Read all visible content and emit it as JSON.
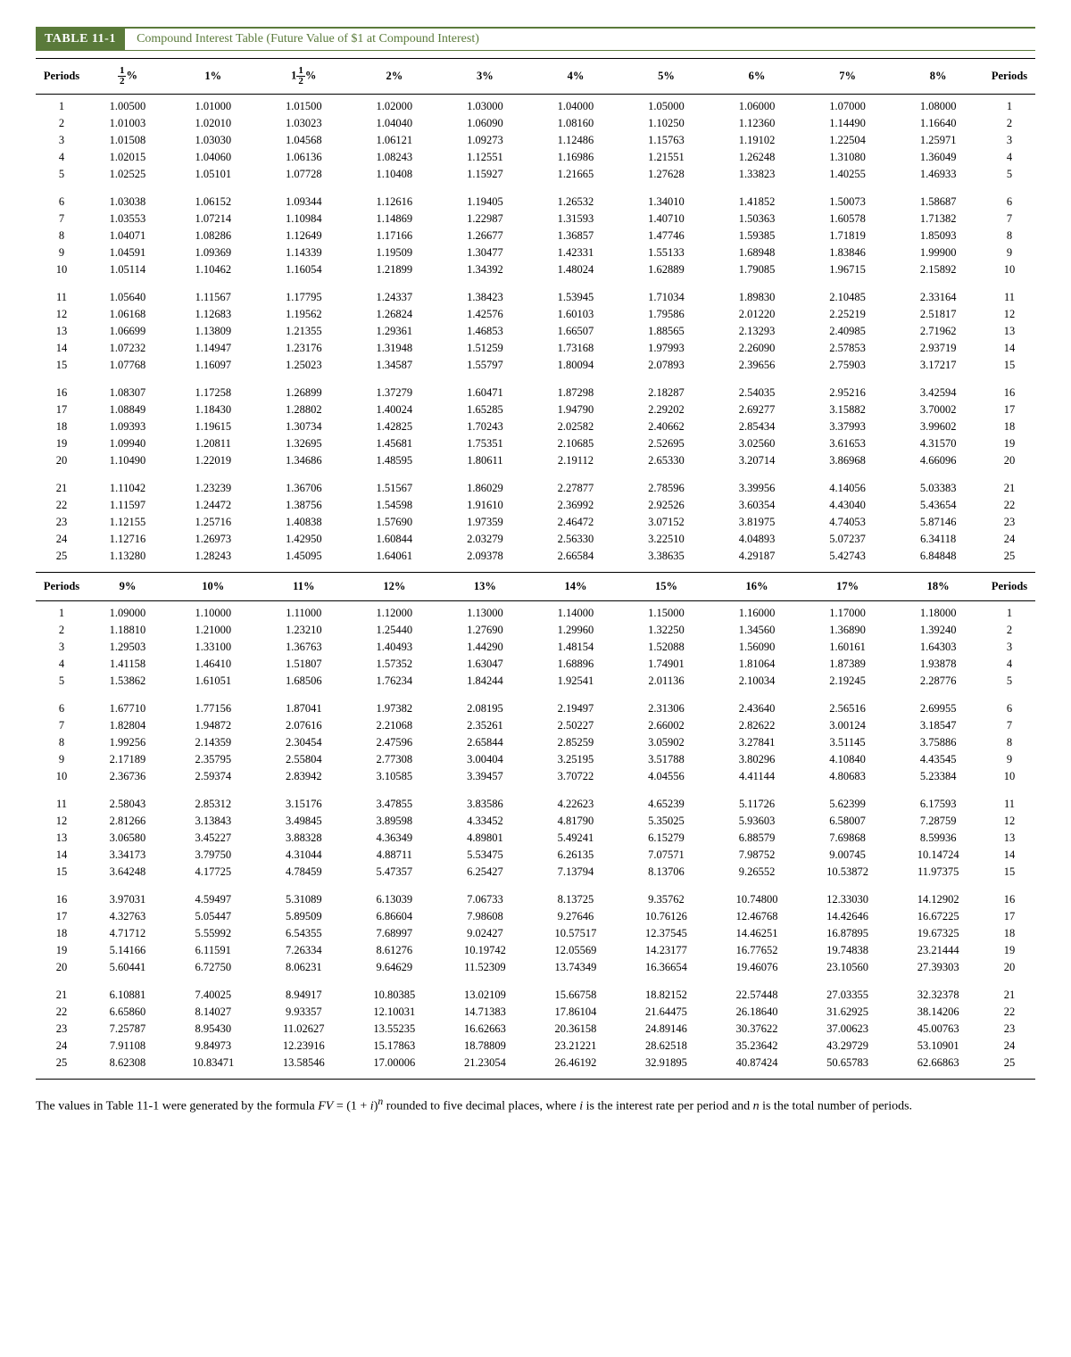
{
  "title_label": "TABLE 11-1",
  "title_text": "Compound Interest Table (Future Value of $1 at Compound Interest)",
  "footnote": "The values in Table 11-1 were generated by the formula FV = (1 + i)ⁿ rounded to five decimal places, where i is the interest rate per period and n is the total number of periods.",
  "periods_header": "Periods",
  "sections": [
    {
      "headers": [
        "½%",
        "1%",
        "1½%",
        "2%",
        "3%",
        "4%",
        "5%",
        "6%",
        "7%",
        "8%"
      ],
      "blocks": [
        [
          [
            "1",
            "1.00500",
            "1.01000",
            "1.01500",
            "1.02000",
            "1.03000",
            "1.04000",
            "1.05000",
            "1.06000",
            "1.07000",
            "1.08000",
            "1"
          ],
          [
            "2",
            "1.01003",
            "1.02010",
            "1.03023",
            "1.04040",
            "1.06090",
            "1.08160",
            "1.10250",
            "1.12360",
            "1.14490",
            "1.16640",
            "2"
          ],
          [
            "3",
            "1.01508",
            "1.03030",
            "1.04568",
            "1.06121",
            "1.09273",
            "1.12486",
            "1.15763",
            "1.19102",
            "1.22504",
            "1.25971",
            "3"
          ],
          [
            "4",
            "1.02015",
            "1.04060",
            "1.06136",
            "1.08243",
            "1.12551",
            "1.16986",
            "1.21551",
            "1.26248",
            "1.31080",
            "1.36049",
            "4"
          ],
          [
            "5",
            "1.02525",
            "1.05101",
            "1.07728",
            "1.10408",
            "1.15927",
            "1.21665",
            "1.27628",
            "1.33823",
            "1.40255",
            "1.46933",
            "5"
          ]
        ],
        [
          [
            "6",
            "1.03038",
            "1.06152",
            "1.09344",
            "1.12616",
            "1.19405",
            "1.26532",
            "1.34010",
            "1.41852",
            "1.50073",
            "1.58687",
            "6"
          ],
          [
            "7",
            "1.03553",
            "1.07214",
            "1.10984",
            "1.14869",
            "1.22987",
            "1.31593",
            "1.40710",
            "1.50363",
            "1.60578",
            "1.71382",
            "7"
          ],
          [
            "8",
            "1.04071",
            "1.08286",
            "1.12649",
            "1.17166",
            "1.26677",
            "1.36857",
            "1.47746",
            "1.59385",
            "1.71819",
            "1.85093",
            "8"
          ],
          [
            "9",
            "1.04591",
            "1.09369",
            "1.14339",
            "1.19509",
            "1.30477",
            "1.42331",
            "1.55133",
            "1.68948",
            "1.83846",
            "1.99900",
            "9"
          ],
          [
            "10",
            "1.05114",
            "1.10462",
            "1.16054",
            "1.21899",
            "1.34392",
            "1.48024",
            "1.62889",
            "1.79085",
            "1.96715",
            "2.15892",
            "10"
          ]
        ],
        [
          [
            "11",
            "1.05640",
            "1.11567",
            "1.17795",
            "1.24337",
            "1.38423",
            "1.53945",
            "1.71034",
            "1.89830",
            "2.10485",
            "2.33164",
            "11"
          ],
          [
            "12",
            "1.06168",
            "1.12683",
            "1.19562",
            "1.26824",
            "1.42576",
            "1.60103",
            "1.79586",
            "2.01220",
            "2.25219",
            "2.51817",
            "12"
          ],
          [
            "13",
            "1.06699",
            "1.13809",
            "1.21355",
            "1.29361",
            "1.46853",
            "1.66507",
            "1.88565",
            "2.13293",
            "2.40985",
            "2.71962",
            "13"
          ],
          [
            "14",
            "1.07232",
            "1.14947",
            "1.23176",
            "1.31948",
            "1.51259",
            "1.73168",
            "1.97993",
            "2.26090",
            "2.57853",
            "2.93719",
            "14"
          ],
          [
            "15",
            "1.07768",
            "1.16097",
            "1.25023",
            "1.34587",
            "1.55797",
            "1.80094",
            "2.07893",
            "2.39656",
            "2.75903",
            "3.17217",
            "15"
          ]
        ],
        [
          [
            "16",
            "1.08307",
            "1.17258",
            "1.26899",
            "1.37279",
            "1.60471",
            "1.87298",
            "2.18287",
            "2.54035",
            "2.95216",
            "3.42594",
            "16"
          ],
          [
            "17",
            "1.08849",
            "1.18430",
            "1.28802",
            "1.40024",
            "1.65285",
            "1.94790",
            "2.29202",
            "2.69277",
            "3.15882",
            "3.70002",
            "17"
          ],
          [
            "18",
            "1.09393",
            "1.19615",
            "1.30734",
            "1.42825",
            "1.70243",
            "2.02582",
            "2.40662",
            "2.85434",
            "3.37993",
            "3.99602",
            "18"
          ],
          [
            "19",
            "1.09940",
            "1.20811",
            "1.32695",
            "1.45681",
            "1.75351",
            "2.10685",
            "2.52695",
            "3.02560",
            "3.61653",
            "4.31570",
            "19"
          ],
          [
            "20",
            "1.10490",
            "1.22019",
            "1.34686",
            "1.48595",
            "1.80611",
            "2.19112",
            "2.65330",
            "3.20714",
            "3.86968",
            "4.66096",
            "20"
          ]
        ],
        [
          [
            "21",
            "1.11042",
            "1.23239",
            "1.36706",
            "1.51567",
            "1.86029",
            "2.27877",
            "2.78596",
            "3.39956",
            "4.14056",
            "5.03383",
            "21"
          ],
          [
            "22",
            "1.11597",
            "1.24472",
            "1.38756",
            "1.54598",
            "1.91610",
            "2.36992",
            "2.92526",
            "3.60354",
            "4.43040",
            "5.43654",
            "22"
          ],
          [
            "23",
            "1.12155",
            "1.25716",
            "1.40838",
            "1.57690",
            "1.97359",
            "2.46472",
            "3.07152",
            "3.81975",
            "4.74053",
            "5.87146",
            "23"
          ],
          [
            "24",
            "1.12716",
            "1.26973",
            "1.42950",
            "1.60844",
            "2.03279",
            "2.56330",
            "3.22510",
            "4.04893",
            "5.07237",
            "6.34118",
            "24"
          ],
          [
            "25",
            "1.13280",
            "1.28243",
            "1.45095",
            "1.64061",
            "2.09378",
            "2.66584",
            "3.38635",
            "4.29187",
            "5.42743",
            "6.84848",
            "25"
          ]
        ]
      ]
    },
    {
      "headers": [
        "9%",
        "10%",
        "11%",
        "12%",
        "13%",
        "14%",
        "15%",
        "16%",
        "17%",
        "18%"
      ],
      "blocks": [
        [
          [
            "1",
            "1.09000",
            "1.10000",
            "1.11000",
            "1.12000",
            "1.13000",
            "1.14000",
            "1.15000",
            "1.16000",
            "1.17000",
            "1.18000",
            "1"
          ],
          [
            "2",
            "1.18810",
            "1.21000",
            "1.23210",
            "1.25440",
            "1.27690",
            "1.29960",
            "1.32250",
            "1.34560",
            "1.36890",
            "1.39240",
            "2"
          ],
          [
            "3",
            "1.29503",
            "1.33100",
            "1.36763",
            "1.40493",
            "1.44290",
            "1.48154",
            "1.52088",
            "1.56090",
            "1.60161",
            "1.64303",
            "3"
          ],
          [
            "4",
            "1.41158",
            "1.46410",
            "1.51807",
            "1.57352",
            "1.63047",
            "1.68896",
            "1.74901",
            "1.81064",
            "1.87389",
            "1.93878",
            "4"
          ],
          [
            "5",
            "1.53862",
            "1.61051",
            "1.68506",
            "1.76234",
            "1.84244",
            "1.92541",
            "2.01136",
            "2.10034",
            "2.19245",
            "2.28776",
            "5"
          ]
        ],
        [
          [
            "6",
            "1.67710",
            "1.77156",
            "1.87041",
            "1.97382",
            "2.08195",
            "2.19497",
            "2.31306",
            "2.43640",
            "2.56516",
            "2.69955",
            "6"
          ],
          [
            "7",
            "1.82804",
            "1.94872",
            "2.07616",
            "2.21068",
            "2.35261",
            "2.50227",
            "2.66002",
            "2.82622",
            "3.00124",
            "3.18547",
            "7"
          ],
          [
            "8",
            "1.99256",
            "2.14359",
            "2.30454",
            "2.47596",
            "2.65844",
            "2.85259",
            "3.05902",
            "3.27841",
            "3.51145",
            "3.75886",
            "8"
          ],
          [
            "9",
            "2.17189",
            "2.35795",
            "2.55804",
            "2.77308",
            "3.00404",
            "3.25195",
            "3.51788",
            "3.80296",
            "4.10840",
            "4.43545",
            "9"
          ],
          [
            "10",
            "2.36736",
            "2.59374",
            "2.83942",
            "3.10585",
            "3.39457",
            "3.70722",
            "4.04556",
            "4.41144",
            "4.80683",
            "5.23384",
            "10"
          ]
        ],
        [
          [
            "11",
            "2.58043",
            "2.85312",
            "3.15176",
            "3.47855",
            "3.83586",
            "4.22623",
            "4.65239",
            "5.11726",
            "5.62399",
            "6.17593",
            "11"
          ],
          [
            "12",
            "2.81266",
            "3.13843",
            "3.49845",
            "3.89598",
            "4.33452",
            "4.81790",
            "5.35025",
            "5.93603",
            "6.58007",
            "7.28759",
            "12"
          ],
          [
            "13",
            "3.06580",
            "3.45227",
            "3.88328",
            "4.36349",
            "4.89801",
            "5.49241",
            "6.15279",
            "6.88579",
            "7.69868",
            "8.59936",
            "13"
          ],
          [
            "14",
            "3.34173",
            "3.79750",
            "4.31044",
            "4.88711",
            "5.53475",
            "6.26135",
            "7.07571",
            "7.98752",
            "9.00745",
            "10.14724",
            "14"
          ],
          [
            "15",
            "3.64248",
            "4.17725",
            "4.78459",
            "5.47357",
            "6.25427",
            "7.13794",
            "8.13706",
            "9.26552",
            "10.53872",
            "11.97375",
            "15"
          ]
        ],
        [
          [
            "16",
            "3.97031",
            "4.59497",
            "5.31089",
            "6.13039",
            "7.06733",
            "8.13725",
            "9.35762",
            "10.74800",
            "12.33030",
            "14.12902",
            "16"
          ],
          [
            "17",
            "4.32763",
            "5.05447",
            "5.89509",
            "6.86604",
            "7.98608",
            "9.27646",
            "10.76126",
            "12.46768",
            "14.42646",
            "16.67225",
            "17"
          ],
          [
            "18",
            "4.71712",
            "5.55992",
            "6.54355",
            "7.68997",
            "9.02427",
            "10.57517",
            "12.37545",
            "14.46251",
            "16.87895",
            "19.67325",
            "18"
          ],
          [
            "19",
            "5.14166",
            "6.11591",
            "7.26334",
            "8.61276",
            "10.19742",
            "12.05569",
            "14.23177",
            "16.77652",
            "19.74838",
            "23.21444",
            "19"
          ],
          [
            "20",
            "5.60441",
            "6.72750",
            "8.06231",
            "9.64629",
            "11.52309",
            "13.74349",
            "16.36654",
            "19.46076",
            "23.10560",
            "27.39303",
            "20"
          ]
        ],
        [
          [
            "21",
            "6.10881",
            "7.40025",
            "8.94917",
            "10.80385",
            "13.02109",
            "15.66758",
            "18.82152",
            "22.57448",
            "27.03355",
            "32.32378",
            "21"
          ],
          [
            "22",
            "6.65860",
            "8.14027",
            "9.93357",
            "12.10031",
            "14.71383",
            "17.86104",
            "21.64475",
            "26.18640",
            "31.62925",
            "38.14206",
            "22"
          ],
          [
            "23",
            "7.25787",
            "8.95430",
            "11.02627",
            "13.55235",
            "16.62663",
            "20.36158",
            "24.89146",
            "30.37622",
            "37.00623",
            "45.00763",
            "23"
          ],
          [
            "24",
            "7.91108",
            "9.84973",
            "12.23916",
            "15.17863",
            "18.78809",
            "23.21221",
            "28.62518",
            "35.23642",
            "43.29729",
            "53.10901",
            "24"
          ],
          [
            "25",
            "8.62308",
            "10.83471",
            "13.58546",
            "17.00006",
            "21.23054",
            "26.46192",
            "32.91895",
            "40.87424",
            "50.65783",
            "62.66863",
            "25"
          ]
        ]
      ]
    }
  ]
}
